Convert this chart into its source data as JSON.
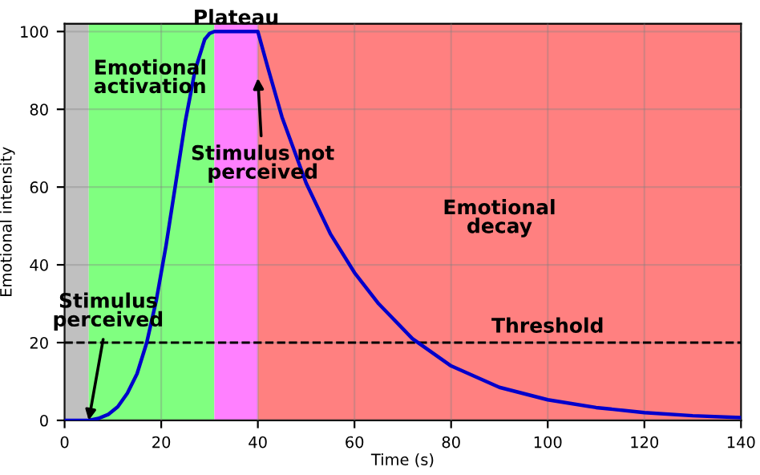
{
  "chart_data": {
    "type": "line",
    "xlabel": "Time (s)",
    "ylabel": "Emotional intensity",
    "xlim": [
      0,
      140
    ],
    "ylim": [
      0,
      102
    ],
    "xticks": [
      0,
      20,
      40,
      60,
      80,
      100,
      120,
      140
    ],
    "yticks": [
      0,
      20,
      40,
      60,
      80,
      100
    ],
    "grid": true,
    "marker": "none",
    "line_style": "solid",
    "series": [
      {
        "color": "#0000cc",
        "x": [
          0,
          5,
          7,
          9,
          11,
          13,
          15,
          17,
          19,
          21,
          23,
          25,
          27,
          29,
          30,
          31,
          40,
          42,
          45,
          50,
          55,
          60,
          65,
          72,
          80,
          90,
          100,
          110,
          120,
          130,
          140
        ],
        "values": [
          0,
          0,
          0.5,
          1.5,
          3.5,
          7,
          12,
          20,
          31,
          45,
          61,
          77,
          90,
          98,
          99.5,
          100,
          100,
          91,
          78,
          61,
          48,
          38,
          30,
          21,
          14,
          8.5,
          5.3,
          3.3,
          2,
          1.2,
          0.7
        ]
      }
    ],
    "bands": [
      {
        "axis": "x",
        "from": 0,
        "to": 5,
        "label": null,
        "color": "#c0c0c0"
      },
      {
        "axis": "x",
        "from": 5,
        "to": 31,
        "label": "Emotional activation",
        "color": "#80ff80"
      },
      {
        "axis": "x",
        "from": 31,
        "to": 40,
        "label": "Plateau",
        "color": "#ff80ff"
      },
      {
        "axis": "x",
        "from": 40,
        "to": 140,
        "label": "Emotional decay",
        "color": "#ff8080"
      }
    ],
    "ref_lines": [
      {
        "axis": "y",
        "value": 20,
        "label": "Threshold",
        "color": "#000000",
        "line_style": "dashed"
      }
    ],
    "annotations": [
      {
        "text": "Stimulus perceived",
        "x": 5,
        "y": 0
      },
      {
        "text": "Stimulus not perceived",
        "x": 40,
        "y": 88
      }
    ]
  }
}
